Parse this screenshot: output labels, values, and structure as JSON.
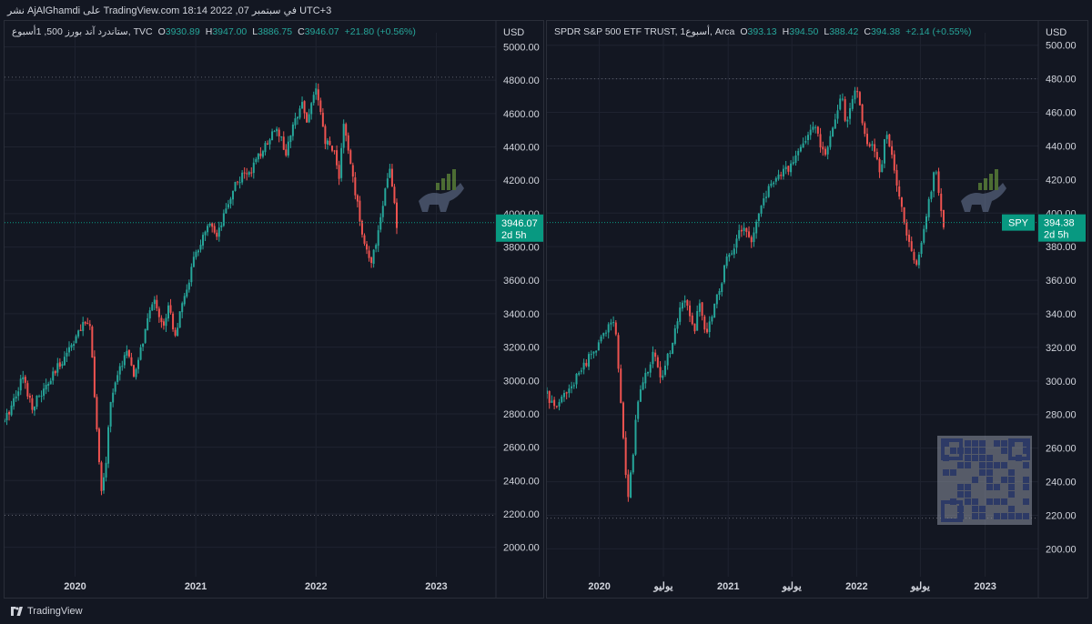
{
  "header": {
    "attribution": "نشر AjAlGhamdi على TradingView.com في سبتمبر 07, 2022 18:14 UTC+3"
  },
  "footer": {
    "brand": "TradingView"
  },
  "colors": {
    "up": "#26a69a",
    "down": "#ef5350",
    "background": "#131722",
    "grid": "#1f2330",
    "price_tag": "#089981"
  },
  "charts": [
    {
      "id": "left",
      "legend": {
        "title": "ستاندرد آند بورز 500, 1أسبوع, TVC",
        "o_label": "O",
        "o": "3930.89",
        "h_label": "H",
        "h": "3947.00",
        "l_label": "L",
        "l": "3886.75",
        "c_label": "C",
        "c": "3946.07",
        "change": "+21.80 (+0.56%)"
      },
      "currency": "USD",
      "price_tag": {
        "value": "3946.07",
        "countdown": "2d 5h"
      }
    },
    {
      "id": "right",
      "legend": {
        "title": "SPDR S&P 500 ETF TRUST, 1أسبوع, Arca",
        "o_label": "O",
        "o": "393.13",
        "h_label": "H",
        "h": "394.50",
        "l_label": "L",
        "l": "388.42",
        "c_label": "C",
        "c": "394.38",
        "change": "+2.14 (+0.55%)"
      },
      "currency": "USD",
      "price_tag": {
        "symbol": "SPY",
        "value": "394.38",
        "countdown": "2d 5h"
      }
    }
  ],
  "chart_data": [
    {
      "type": "candlestick",
      "title": "ستاندرد آند بورز 500, 1أسبوع, TVC",
      "xlabel": "",
      "ylabel": "USD",
      "ylim": [
        1900,
        5030
      ],
      "y_ticks": [
        "2000.00",
        "2200.00",
        "2400.00",
        "2600.00",
        "2800.00",
        "3000.00",
        "3200.00",
        "3400.00",
        "3600.00",
        "3800.00",
        "4000.00",
        "4200.00",
        "4400.00",
        "4600.00",
        "4800.00",
        "5000.00"
      ],
      "x_ticks": [
        {
          "label": "2020",
          "date": "2020-01-01"
        },
        {
          "label": "2021",
          "date": "2021-01-01"
        },
        {
          "label": "2022",
          "date": "2022-01-01"
        },
        {
          "label": "2023",
          "date": "2023-01-01"
        }
      ],
      "x_start": "2019-06-01",
      "x_end": "2023-07-01",
      "h_lines": [
        4818,
        2192
      ],
      "last_price": 3946.07,
      "anchors": [
        [
          "2019-06-01",
          2750
        ],
        [
          "2019-07-26",
          3025
        ],
        [
          "2019-08-23",
          2847
        ],
        [
          "2019-10-04",
          2952
        ],
        [
          "2019-12-27",
          3240
        ],
        [
          "2020-02-14",
          3380
        ],
        [
          "2020-02-28",
          2954
        ],
        [
          "2020-03-20",
          2305
        ],
        [
          "2020-04-03",
          2489
        ],
        [
          "2020-04-17",
          2875
        ],
        [
          "2020-06-05",
          3194
        ],
        [
          "2020-06-26",
          3009
        ],
        [
          "2020-08-28",
          3508
        ],
        [
          "2020-09-25",
          3298
        ],
        [
          "2020-10-09",
          3478
        ],
        [
          "2020-10-30",
          3270
        ],
        [
          "2020-12-31",
          3756
        ],
        [
          "2021-02-12",
          3934
        ],
        [
          "2021-03-05",
          3841
        ],
        [
          "2021-04-30",
          4181
        ],
        [
          "2021-06-25",
          4280
        ],
        [
          "2021-09-03",
          4535
        ],
        [
          "2021-10-01",
          4357
        ],
        [
          "2021-11-19",
          4697
        ],
        [
          "2021-12-03",
          4538
        ],
        [
          "2021-12-31",
          4766
        ],
        [
          "2022-01-28",
          4431
        ],
        [
          "2022-02-25",
          4385
        ],
        [
          "2022-03-11",
          4204
        ],
        [
          "2022-03-25",
          4543
        ],
        [
          "2022-05-20",
          3901
        ],
        [
          "2022-06-17",
          3675
        ],
        [
          "2022-07-08",
          3899
        ],
        [
          "2022-08-12",
          4280
        ],
        [
          "2022-08-26",
          4057
        ],
        [
          "2022-09-02",
          3924
        ],
        [
          "2022-09-09",
          3946
        ]
      ]
    },
    {
      "type": "candlestick",
      "title": "SPDR S&P 500 ETF TRUST, 1أسبوع, Arca",
      "xlabel": "",
      "ylabel": "USD",
      "ylim": [
        191,
        502
      ],
      "y_ticks": [
        "200.00",
        "220.00",
        "240.00",
        "260.00",
        "280.00",
        "300.00",
        "320.00",
        "340.00",
        "360.00",
        "380.00",
        "400.00",
        "420.00",
        "440.00",
        "460.00",
        "480.00",
        "500.00"
      ],
      "x_ticks": [
        {
          "label": "2020",
          "date": "2020-01-01"
        },
        {
          "label": "يوليو",
          "date": "2020-07-01"
        },
        {
          "label": "2021",
          "date": "2021-01-01"
        },
        {
          "label": "يوليو",
          "date": "2021-07-01"
        },
        {
          "label": "2022",
          "date": "2022-01-01"
        },
        {
          "label": "يوليو",
          "date": "2022-07-01"
        },
        {
          "label": "2023",
          "date": "2023-01-01"
        }
      ],
      "x_start": "2019-08-05",
      "x_end": "2023-06-01",
      "h_lines": [
        479.98,
        218.26
      ],
      "last_price": 394.38,
      "anchors": [
        [
          "2019-08-05",
          292
        ],
        [
          "2019-08-23",
          284
        ],
        [
          "2019-10-04",
          294
        ],
        [
          "2019-12-27",
          322
        ],
        [
          "2020-02-14",
          337
        ],
        [
          "2020-02-28",
          296
        ],
        [
          "2020-03-20",
          229
        ],
        [
          "2020-04-03",
          249
        ],
        [
          "2020-04-17",
          287
        ],
        [
          "2020-06-05",
          319
        ],
        [
          "2020-06-26",
          300
        ],
        [
          "2020-08-28",
          350
        ],
        [
          "2020-09-25",
          328
        ],
        [
          "2020-10-09",
          347
        ],
        [
          "2020-10-30",
          326
        ],
        [
          "2020-12-31",
          374
        ],
        [
          "2021-02-12",
          392
        ],
        [
          "2021-03-05",
          383
        ],
        [
          "2021-04-30",
          417
        ],
        [
          "2021-06-25",
          427
        ],
        [
          "2021-09-03",
          453
        ],
        [
          "2021-10-01",
          434
        ],
        [
          "2021-11-19",
          469
        ],
        [
          "2021-12-03",
          453
        ],
        [
          "2021-12-31",
          475
        ],
        [
          "2022-01-28",
          441
        ],
        [
          "2022-02-25",
          437
        ],
        [
          "2022-03-11",
          420
        ],
        [
          "2022-03-25",
          452
        ],
        [
          "2022-05-20",
          389
        ],
        [
          "2022-06-17",
          366
        ],
        [
          "2022-07-08",
          388
        ],
        [
          "2022-08-12",
          427
        ],
        [
          "2022-08-26",
          405
        ],
        [
          "2022-09-02",
          392
        ],
        [
          "2022-09-09",
          394
        ]
      ]
    }
  ]
}
